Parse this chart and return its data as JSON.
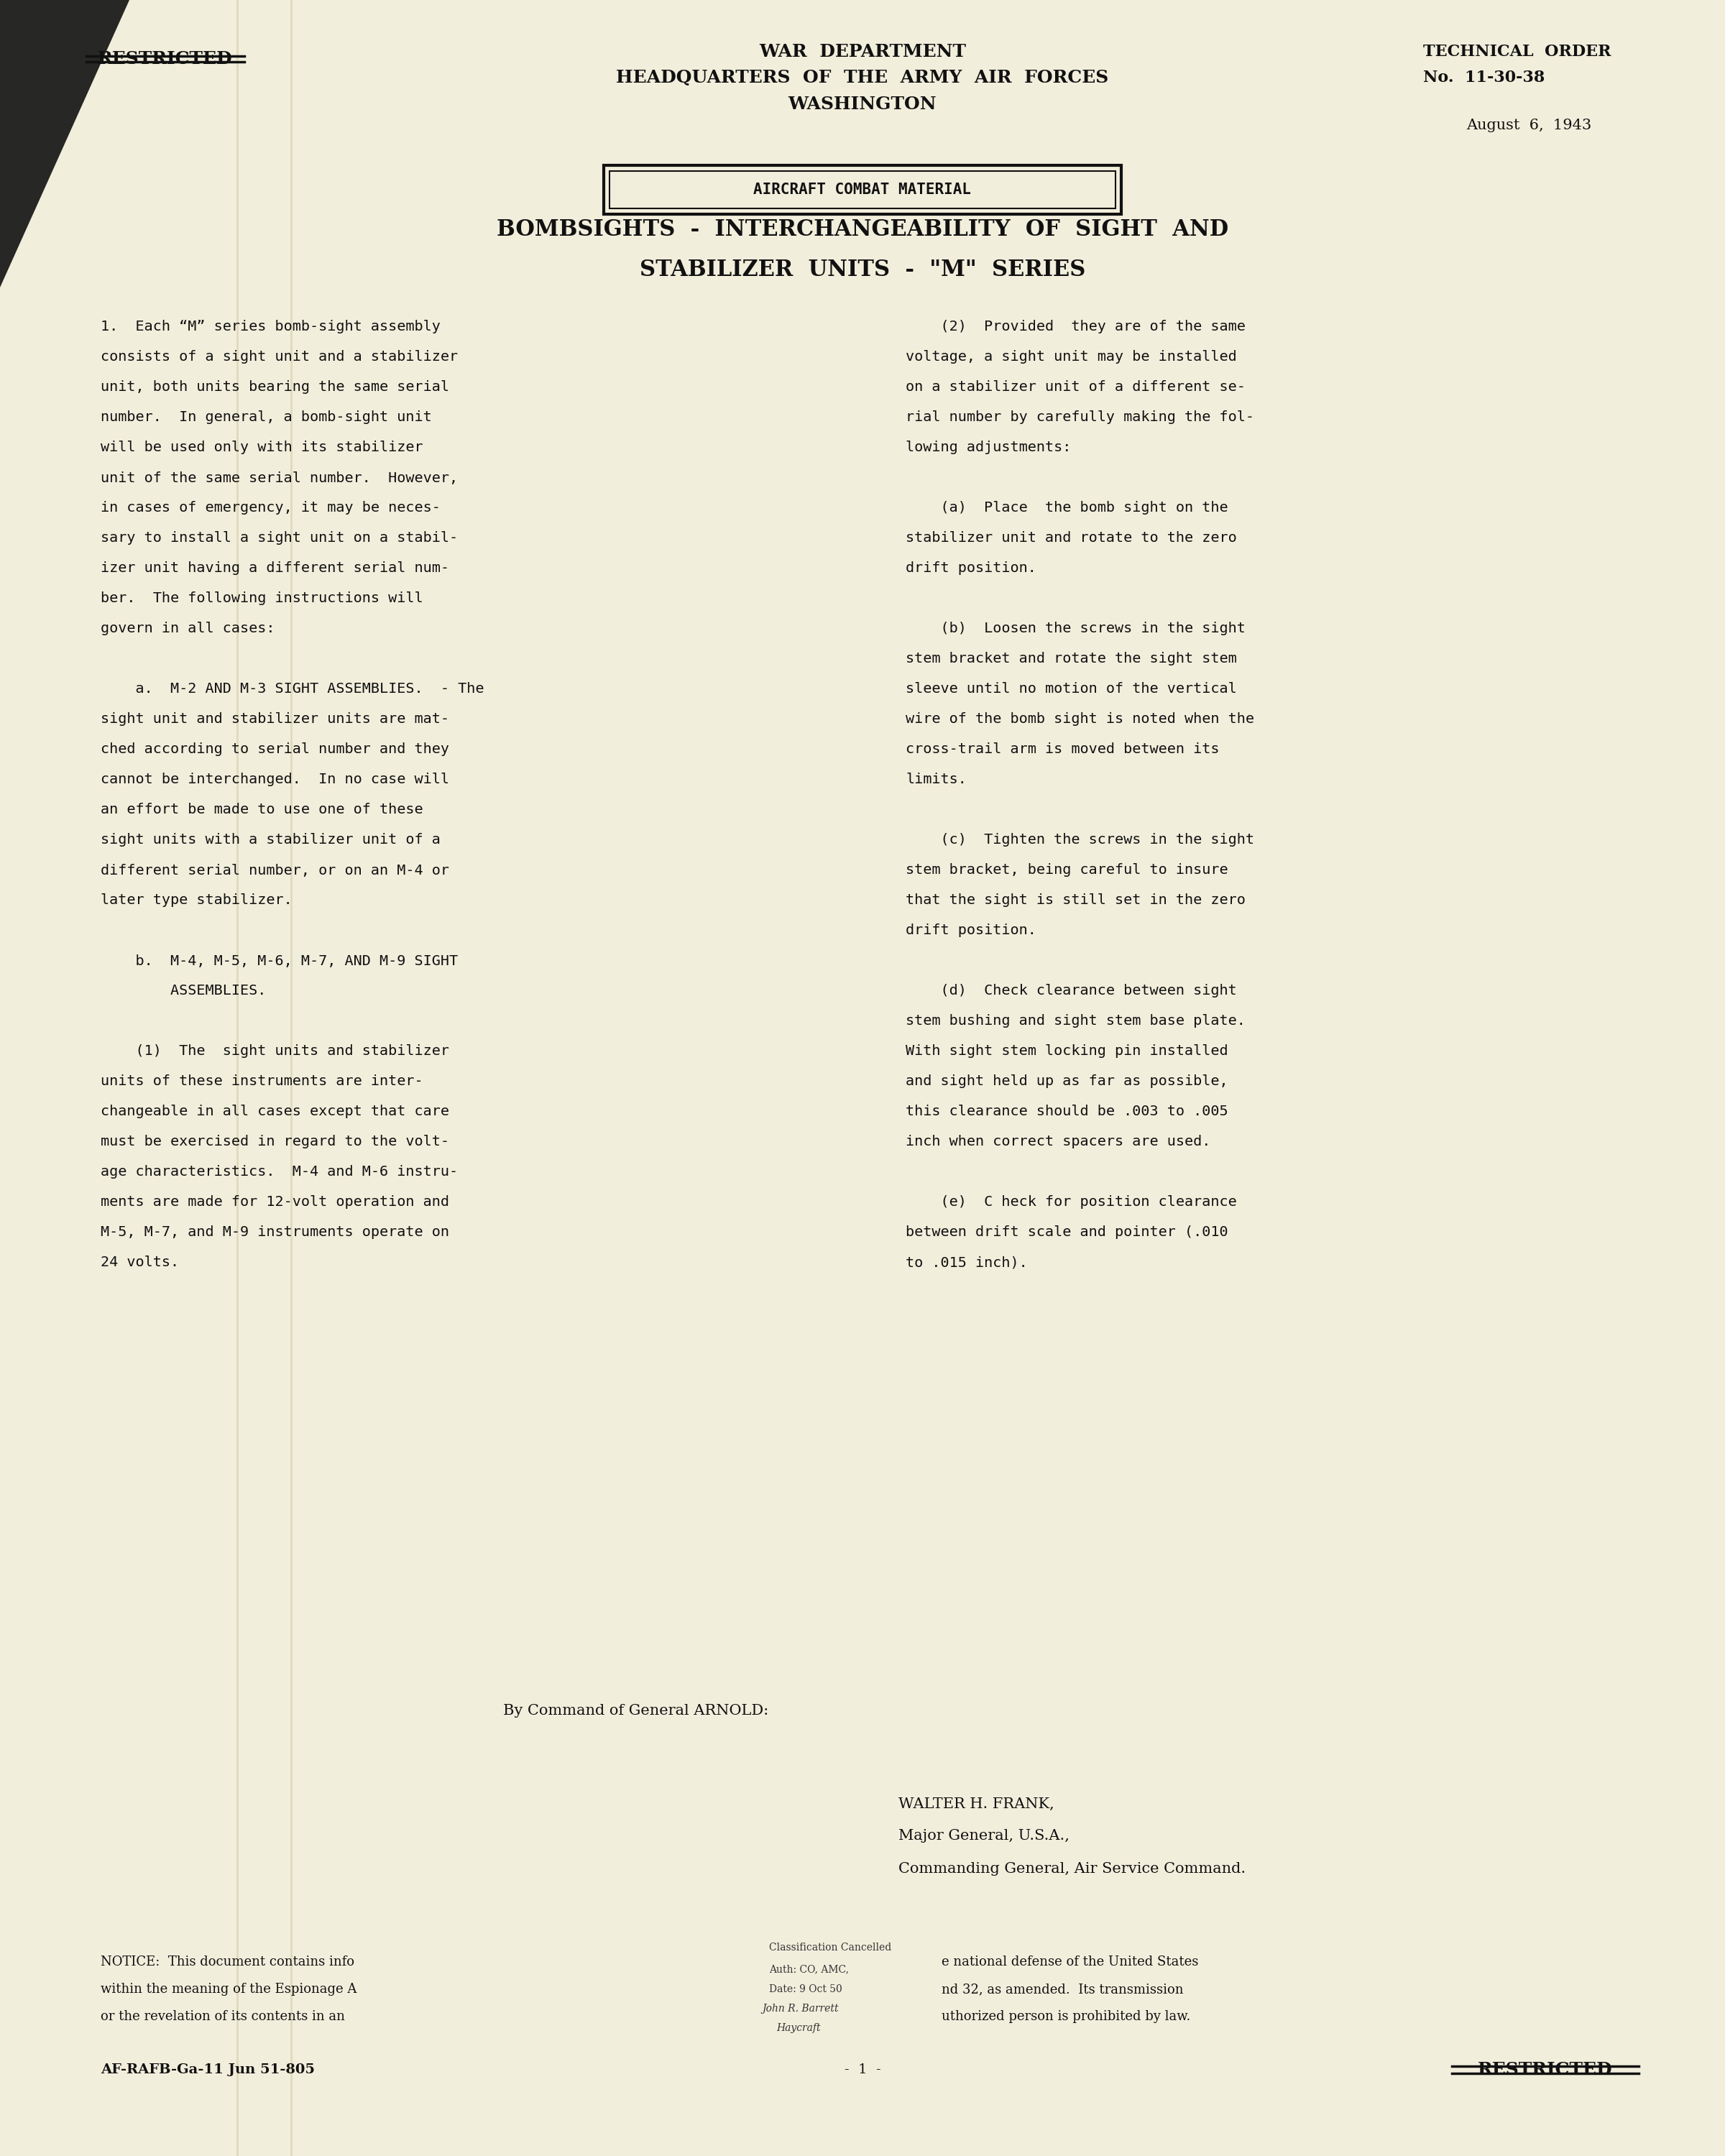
{
  "bg_color": "#f2eedc",
  "page_width": 24.0,
  "page_height": 30.0,
  "header": {
    "restricted_left": "RESTRICTED",
    "center_line1": "WAR  DEPARTMENT",
    "center_line2": "HEADQUARTERS  OF  THE  ARMY  AIR  FORCES",
    "center_line3": "WASHINGTON",
    "right_line1": "TECHNICAL  ORDER",
    "right_line2": "No.  11-30-38",
    "date": "August  6,  1943"
  },
  "box_label": "AIRCRAFT COMBAT MATERIAL",
  "title_line1": "BOMBSIGHTS  -  INTERCHANGEABILITY  OF  SIGHT  AND",
  "title_line2": "STABILIZER  UNITS  -  \"M\"  SERIES",
  "col1_lines": [
    {
      "text": "1.  Each “M” series bomb-sight assembly",
      "bold": false,
      "indent": 0
    },
    {
      "text": "consists of a sight unit and a stabilizer",
      "bold": false,
      "indent": 0
    },
    {
      "text": "unit, both units bearing the same serial",
      "bold": false,
      "indent": 0
    },
    {
      "text": "number.  In general, a bomb-sight unit",
      "bold": false,
      "indent": 0
    },
    {
      "text": "will be used only with its stabilizer",
      "bold": false,
      "indent": 0
    },
    {
      "text": "unit of the same serial number.  However,",
      "bold": false,
      "indent": 0
    },
    {
      "text": "in cases of emergency, it may be neces-",
      "bold": false,
      "indent": 0
    },
    {
      "text": "sary to install a sight unit on a stabil-",
      "bold": false,
      "indent": 0
    },
    {
      "text": "izer unit having a different serial num-",
      "bold": false,
      "indent": 0
    },
    {
      "text": "ber.  The following instructions will",
      "bold": false,
      "indent": 0
    },
    {
      "text": "govern in all cases:",
      "bold": false,
      "indent": 0
    },
    {
      "text": "",
      "bold": false,
      "indent": 0
    },
    {
      "text": "    a.  M-2 AND M-3 SIGHT ASSEMBLIES.  - The",
      "bold": false,
      "indent": 0
    },
    {
      "text": "sight unit and stabilizer units are mat-",
      "bold": false,
      "indent": 0
    },
    {
      "text": "ched according to serial number and they",
      "bold": false,
      "indent": 0
    },
    {
      "text": "cannot be interchanged.  In no case will",
      "bold": false,
      "indent": 0
    },
    {
      "text": "an effort be made to use one of these",
      "bold": false,
      "indent": 0
    },
    {
      "text": "sight units with a stabilizer unit of a",
      "bold": false,
      "indent": 0
    },
    {
      "text": "different serial number, or on an M-4 or",
      "bold": false,
      "indent": 0
    },
    {
      "text": "later type stabilizer.",
      "bold": false,
      "indent": 0
    },
    {
      "text": "",
      "bold": false,
      "indent": 0
    },
    {
      "text": "    b.  M-4, M-5, M-6, M-7, AND M-9 SIGHT",
      "bold": false,
      "indent": 0
    },
    {
      "text": "        ASSEMBLIES.",
      "bold": false,
      "indent": 0
    },
    {
      "text": "",
      "bold": false,
      "indent": 0
    },
    {
      "text": "    (1)  The  sight units and stabilizer",
      "bold": false,
      "indent": 0
    },
    {
      "text": "units of these instruments are inter-",
      "bold": false,
      "indent": 0
    },
    {
      "text": "changeable in all cases except that care",
      "bold": false,
      "indent": 0
    },
    {
      "text": "must be exercised in regard to the volt-",
      "bold": false,
      "indent": 0
    },
    {
      "text": "age characteristics.  M-4 and M-6 instru-",
      "bold": false,
      "indent": 0
    },
    {
      "text": "ments are made for 12-volt operation and",
      "bold": false,
      "indent": 0
    },
    {
      "text": "M-5, M-7, and M-9 instruments operate on",
      "bold": false,
      "indent": 0
    },
    {
      "text": "24 volts.",
      "bold": false,
      "indent": 0
    }
  ],
  "col2_lines": [
    {
      "text": "    (2)  Provided  they are of the same",
      "bold": false
    },
    {
      "text": "voltage, a sight unit may be installed",
      "bold": false
    },
    {
      "text": "on a stabilizer unit of a different se-",
      "bold": false
    },
    {
      "text": "rial number by carefully making the fol-",
      "bold": false
    },
    {
      "text": "lowing adjustments:",
      "bold": false
    },
    {
      "text": "",
      "bold": false
    },
    {
      "text": "    (a)  Place  the bomb sight on the",
      "bold": false
    },
    {
      "text": "stabilizer unit and rotate to the zero",
      "bold": false
    },
    {
      "text": "drift position.",
      "bold": false
    },
    {
      "text": "",
      "bold": false
    },
    {
      "text": "    (b)  Loosen the screws in the sight",
      "bold": false
    },
    {
      "text": "stem bracket and rotate the sight stem",
      "bold": false
    },
    {
      "text": "sleeve until no motion of the vertical",
      "bold": false
    },
    {
      "text": "wire of the bomb sight is noted when the",
      "bold": false
    },
    {
      "text": "cross-trail arm is moved between its",
      "bold": false
    },
    {
      "text": "limits.",
      "bold": false
    },
    {
      "text": "",
      "bold": false
    },
    {
      "text": "    (c)  Tighten the screws in the sight",
      "bold": false
    },
    {
      "text": "stem bracket, being careful to insure",
      "bold": false
    },
    {
      "text": "that the sight is still set in the zero",
      "bold": false
    },
    {
      "text": "drift position.",
      "bold": false
    },
    {
      "text": "",
      "bold": false
    },
    {
      "text": "    (d)  Check clearance between sight",
      "bold": false
    },
    {
      "text": "stem bushing and sight stem base plate.",
      "bold": false
    },
    {
      "text": "With sight stem locking pin installed",
      "bold": false
    },
    {
      "text": "and sight held up as far as possible,",
      "bold": false
    },
    {
      "text": "this clearance should be .003 to .005",
      "bold": false
    },
    {
      "text": "inch when correct spacers are used.",
      "bold": false
    },
    {
      "text": "",
      "bold": false
    },
    {
      "text": "    (e)  C heck for position clearance",
      "bold": false
    },
    {
      "text": "between drift scale and pointer (.010",
      "bold": false
    },
    {
      "text": "to .015 inch).",
      "bold": false
    }
  ],
  "sig_command": "By Command of General ARNOLD:",
  "sig_name": "WALTER H. FRANK,",
  "sig_rank": "Major General, U.S.A.,",
  "sig_title": "Commanding General, Air Service Command.",
  "notice_left1": "NOTICE:  This document contains info",
  "notice_left2": "within the meaning of the Espionage A",
  "notice_left3": "or the revelation of its contents in an",
  "stamp_header": "Classification Cancelled",
  "stamp_auth": "Auth: CO, AMC,",
  "stamp_date": "Date: 9 Oct 50",
  "stamp_sig1": "John R. Barrett",
  "stamp_sig2": "Haycraft",
  "notice_right1": "e national defense of the United States",
  "notice_right2": "nd 32, as amended.  Its transmission",
  "notice_right3": "uthorized person is prohibited by law.",
  "footer_left": "AF-RAFB-Ga-11 Jun 51-805",
  "footer_center": "-  1  -",
  "footer_right": "RESTRICTED"
}
